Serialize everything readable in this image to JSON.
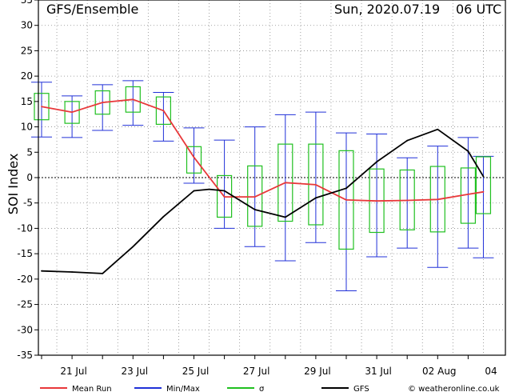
{
  "chart_data": {
    "type": "line",
    "title": "GFS/Ensemble",
    "date_label": "Sun, 2020.07.19",
    "run_label": "06 UTC",
    "ylabel": "SOI Index",
    "xlabel": "",
    "ylim": [
      -35,
      35
    ],
    "y_ticks": [
      35,
      30,
      25,
      20,
      15,
      10,
      5,
      0,
      -5,
      -10,
      -15,
      -20,
      -25,
      -30,
      -35
    ],
    "x_range": [
      0,
      14.5
    ],
    "x_ticks": [
      {
        "label": "21 Jul",
        "x": 1
      },
      {
        "label": "23 Jul",
        "x": 3
      },
      {
        "label": "25 Jul",
        "x": 5
      },
      {
        "label": "27 Jul",
        "x": 7
      },
      {
        "label": "29 Jul",
        "x": 9
      },
      {
        "label": "31 Jul",
        "x": 11
      },
      {
        "label": "02 Aug",
        "x": 13
      },
      {
        "label": "04",
        "x": 14.7
      }
    ],
    "grid": true,
    "colors": {
      "mean": "#e8383a",
      "minmax": "#2030d8",
      "sigma": "#20c020",
      "gfs": "#000000"
    },
    "series": [
      {
        "name": "Mean Run",
        "color": "#e8383a",
        "x": [
          0,
          1,
          2,
          3,
          4,
          5,
          6,
          7,
          8,
          9,
          10,
          11,
          12,
          13,
          14,
          14.5
        ],
        "values": [
          14.0,
          12.9,
          14.8,
          15.4,
          13.2,
          4.0,
          -3.8,
          -3.8,
          -1.0,
          -1.4,
          -4.4,
          -4.6,
          -4.5,
          -4.3,
          -3.3,
          -2.8
        ]
      },
      {
        "name": "GFS",
        "color": "#000000",
        "x": [
          0,
          1,
          2,
          3,
          4,
          5,
          5.5,
          6,
          7,
          8,
          9,
          10,
          11,
          12,
          13,
          14,
          14.5
        ],
        "values": [
          -18.4,
          -18.6,
          -18.9,
          -13.6,
          -7.7,
          -2.6,
          -2.3,
          -2.6,
          -6.3,
          -7.8,
          -4.0,
          -2.1,
          3.1,
          7.3,
          9.5,
          5.2,
          0.2
        ]
      }
    ],
    "boxes": [
      {
        "x": 0,
        "min": 8.0,
        "max": 18.8,
        "sigma_low": 11.4,
        "sigma_high": 16.6
      },
      {
        "x": 1,
        "min": 7.9,
        "max": 16.1,
        "sigma_low": 10.7,
        "sigma_high": 15.0
      },
      {
        "x": 2,
        "min": 9.3,
        "max": 18.3,
        "sigma_low": 12.5,
        "sigma_high": 17.1
      },
      {
        "x": 3,
        "min": 10.3,
        "max": 19.1,
        "sigma_low": 12.9,
        "sigma_high": 17.9
      },
      {
        "x": 4,
        "min": 7.2,
        "max": 16.8,
        "sigma_low": 10.5,
        "sigma_high": 15.9
      },
      {
        "x": 5,
        "min": -1.1,
        "max": 9.8,
        "sigma_low": 0.9,
        "sigma_high": 6.1
      },
      {
        "x": 6,
        "min": -10.0,
        "max": 7.4,
        "sigma_low": -7.8,
        "sigma_high": 0.4
      },
      {
        "x": 7,
        "min": -13.6,
        "max": 10.0,
        "sigma_low": -9.6,
        "sigma_high": 2.3
      },
      {
        "x": 8,
        "min": -16.4,
        "max": 12.4,
        "sigma_low": -8.6,
        "sigma_high": 6.6
      },
      {
        "x": 9,
        "min": -12.8,
        "max": 12.9,
        "sigma_low": -9.3,
        "sigma_high": 6.6
      },
      {
        "x": 10,
        "min": -22.3,
        "max": 8.8,
        "sigma_low": -14.1,
        "sigma_high": 5.3
      },
      {
        "x": 11,
        "min": -15.6,
        "max": 8.6,
        "sigma_low": -10.8,
        "sigma_high": 1.7
      },
      {
        "x": 12,
        "min": -13.9,
        "max": 3.9,
        "sigma_low": -10.3,
        "sigma_high": 1.5
      },
      {
        "x": 13,
        "min": -17.7,
        "max": 6.2,
        "sigma_low": -10.7,
        "sigma_high": 2.2
      },
      {
        "x": 14,
        "min": -13.9,
        "max": 7.9,
        "sigma_low": -9.0,
        "sigma_high": 1.9
      },
      {
        "x": 14.5,
        "min": -15.8,
        "max": 4.2,
        "sigma_low": -7.1,
        "sigma_high": 4.1
      }
    ]
  },
  "legend": {
    "mean_label": "Mean Run",
    "minmax_label": "Min/Max",
    "sigma_label": "σ",
    "gfs_label": "GFS",
    "credit": "© weatheronline.co.uk"
  }
}
